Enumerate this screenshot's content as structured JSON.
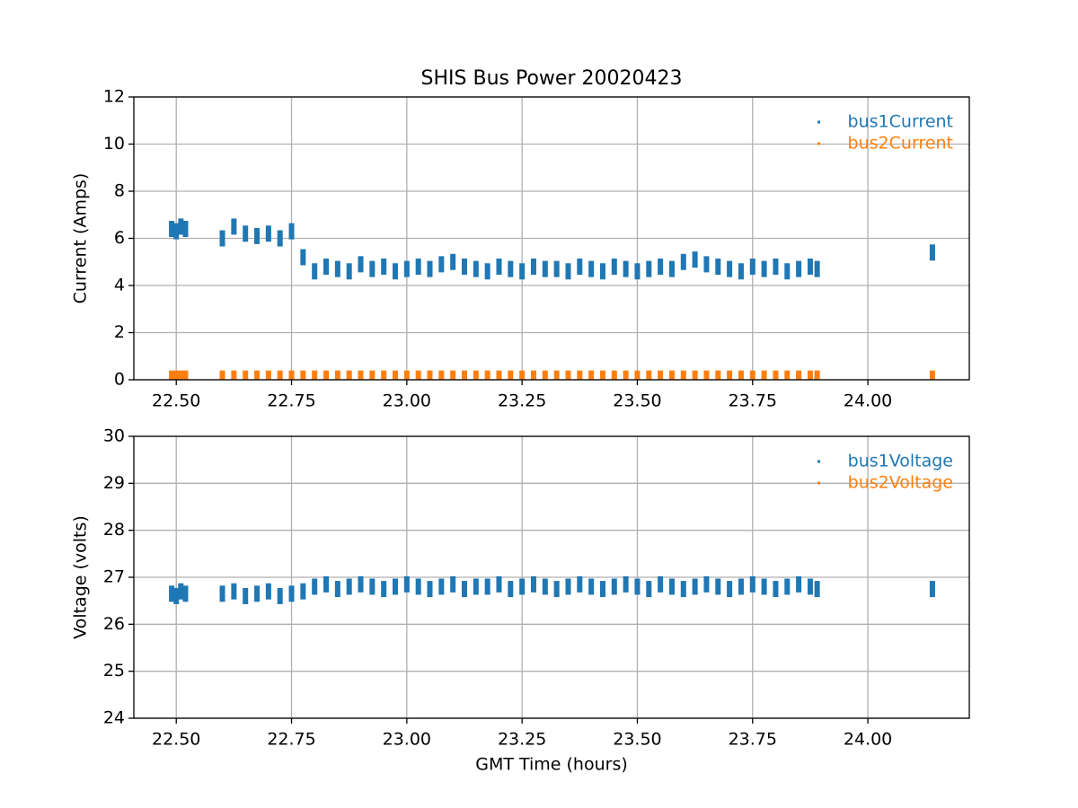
{
  "chart_data": [
    {
      "type": "scatter",
      "title": "SHIS Bus Power 20020423",
      "y_label": "Current (Amps)",
      "x": [
        22.49,
        22.5,
        22.51,
        22.52,
        22.6,
        22.625,
        22.65,
        22.675,
        22.7,
        22.725,
        22.75,
        22.775,
        22.8,
        22.825,
        22.85,
        22.875,
        22.9,
        22.925,
        22.95,
        22.975,
        23,
        23.025,
        23.05,
        23.075,
        23.1,
        23.125,
        23.15,
        23.175,
        23.2,
        23.225,
        23.25,
        23.275,
        23.3,
        23.325,
        23.35,
        23.375,
        23.4,
        23.425,
        23.45,
        23.475,
        23.5,
        23.525,
        23.55,
        23.575,
        23.6,
        23.625,
        23.65,
        23.675,
        23.7,
        23.725,
        23.75,
        23.775,
        23.8,
        23.825,
        23.85,
        23.875,
        23.89,
        24.14
      ],
      "series": [
        {
          "name": "bus1Current",
          "color": "#1f77b4",
          "values": [
            6.4,
            6.3,
            6.5,
            6.4,
            6.0,
            6.5,
            6.2,
            6.1,
            6.2,
            6.0,
            6.3,
            5.2,
            4.6,
            4.8,
            4.7,
            4.6,
            4.9,
            4.7,
            4.8,
            4.6,
            4.7,
            4.8,
            4.7,
            4.9,
            5.0,
            4.8,
            4.7,
            4.6,
            4.8,
            4.7,
            4.6,
            4.8,
            4.7,
            4.7,
            4.6,
            4.8,
            4.7,
            4.6,
            4.8,
            4.7,
            4.6,
            4.7,
            4.8,
            4.7,
            5.0,
            5.1,
            4.9,
            4.8,
            4.7,
            4.6,
            4.8,
            4.7,
            4.8,
            4.6,
            4.7,
            4.8,
            4.7,
            5.4
          ]
        },
        {
          "name": "bus2Current",
          "color": "#ff7f0e",
          "values": [
            0.05,
            0.05,
            0.05,
            0.05,
            0.05,
            0.05,
            0.05,
            0.05,
            0.05,
            0.05,
            0.05,
            0.05,
            0.05,
            0.05,
            0.05,
            0.05,
            0.05,
            0.05,
            0.05,
            0.05,
            0.05,
            0.05,
            0.05,
            0.05,
            0.05,
            0.05,
            0.05,
            0.05,
            0.05,
            0.05,
            0.05,
            0.05,
            0.05,
            0.05,
            0.05,
            0.05,
            0.05,
            0.05,
            0.05,
            0.05,
            0.05,
            0.05,
            0.05,
            0.05,
            0.05,
            0.05,
            0.05,
            0.05,
            0.05,
            0.05,
            0.05,
            0.05,
            0.05,
            0.05,
            0.05,
            0.05,
            0.05,
            0.05
          ]
        }
      ],
      "xlim": [
        22.408,
        24.22
      ],
      "xticks": [
        {
          "value": 22.5,
          "label": "22.50"
        },
        {
          "value": 22.75,
          "label": "22.75"
        },
        {
          "value": 23,
          "label": "23.00"
        },
        {
          "value": 23.25,
          "label": "23.25"
        },
        {
          "value": 23.5,
          "label": "23.50"
        },
        {
          "value": 23.75,
          "label": "23.75"
        },
        {
          "value": 24,
          "label": "24.00"
        }
      ],
      "ylim": [
        0,
        12
      ],
      "yticks": [
        0,
        2,
        4,
        6,
        8,
        10,
        12
      ],
      "grid": true,
      "legend": "upper-right"
    },
    {
      "type": "scatter",
      "y_label": "Voltage (volts)",
      "x_label": "GMT Time (hours)",
      "x": [
        22.49,
        22.5,
        22.51,
        22.52,
        22.6,
        22.625,
        22.65,
        22.675,
        22.7,
        22.725,
        22.75,
        22.775,
        22.8,
        22.825,
        22.85,
        22.875,
        22.9,
        22.925,
        22.95,
        22.975,
        23,
        23.025,
        23.05,
        23.075,
        23.1,
        23.125,
        23.15,
        23.175,
        23.2,
        23.225,
        23.25,
        23.275,
        23.3,
        23.325,
        23.35,
        23.375,
        23.4,
        23.425,
        23.45,
        23.475,
        23.5,
        23.525,
        23.55,
        23.575,
        23.6,
        23.625,
        23.65,
        23.675,
        23.7,
        23.725,
        23.75,
        23.775,
        23.8,
        23.825,
        23.85,
        23.875,
        23.89,
        24.14
      ],
      "series": [
        {
          "name": "bus1Voltage",
          "color": "#1f77b4",
          "values": [
            26.65,
            26.6,
            26.7,
            26.65,
            26.65,
            26.7,
            26.6,
            26.65,
            26.7,
            26.6,
            26.65,
            26.7,
            26.8,
            26.85,
            26.75,
            26.8,
            26.85,
            26.8,
            26.75,
            26.8,
            26.85,
            26.8,
            26.75,
            26.8,
            26.85,
            26.75,
            26.8,
            26.8,
            26.85,
            26.75,
            26.8,
            26.85,
            26.8,
            26.75,
            26.8,
            26.85,
            26.8,
            26.75,
            26.8,
            26.85,
            26.8,
            26.75,
            26.85,
            26.8,
            26.75,
            26.8,
            26.85,
            26.8,
            26.75,
            26.8,
            26.85,
            26.8,
            26.75,
            26.8,
            26.85,
            26.8,
            26.75,
            26.75
          ]
        },
        {
          "name": "bus2Voltage",
          "color": "#ff7f0e",
          "values": [
            null,
            null,
            null,
            null,
            null,
            null,
            null,
            null,
            null,
            null,
            null,
            null,
            null,
            null,
            null,
            null,
            null,
            null,
            null,
            null,
            null,
            null,
            null,
            null,
            null,
            null,
            null,
            null,
            null,
            null,
            null,
            null,
            null,
            null,
            null,
            null,
            null,
            null,
            null,
            null,
            null,
            null,
            null,
            null,
            null,
            null,
            null,
            null,
            null,
            null,
            null,
            null,
            null,
            null,
            null,
            null,
            null,
            null
          ]
        }
      ],
      "xlim": [
        22.408,
        24.22
      ],
      "xticks": [
        {
          "value": 22.5,
          "label": "22.50"
        },
        {
          "value": 22.75,
          "label": "22.75"
        },
        {
          "value": 23,
          "label": "23.00"
        },
        {
          "value": 23.25,
          "label": "23.25"
        },
        {
          "value": 23.5,
          "label": "23.50"
        },
        {
          "value": 23.75,
          "label": "23.75"
        },
        {
          "value": 24,
          "label": "24.00"
        }
      ],
      "ylim": [
        24,
        30
      ],
      "yticks": [
        24,
        25,
        26,
        27,
        28,
        29,
        30
      ],
      "grid": true,
      "legend": "upper-right"
    }
  ]
}
